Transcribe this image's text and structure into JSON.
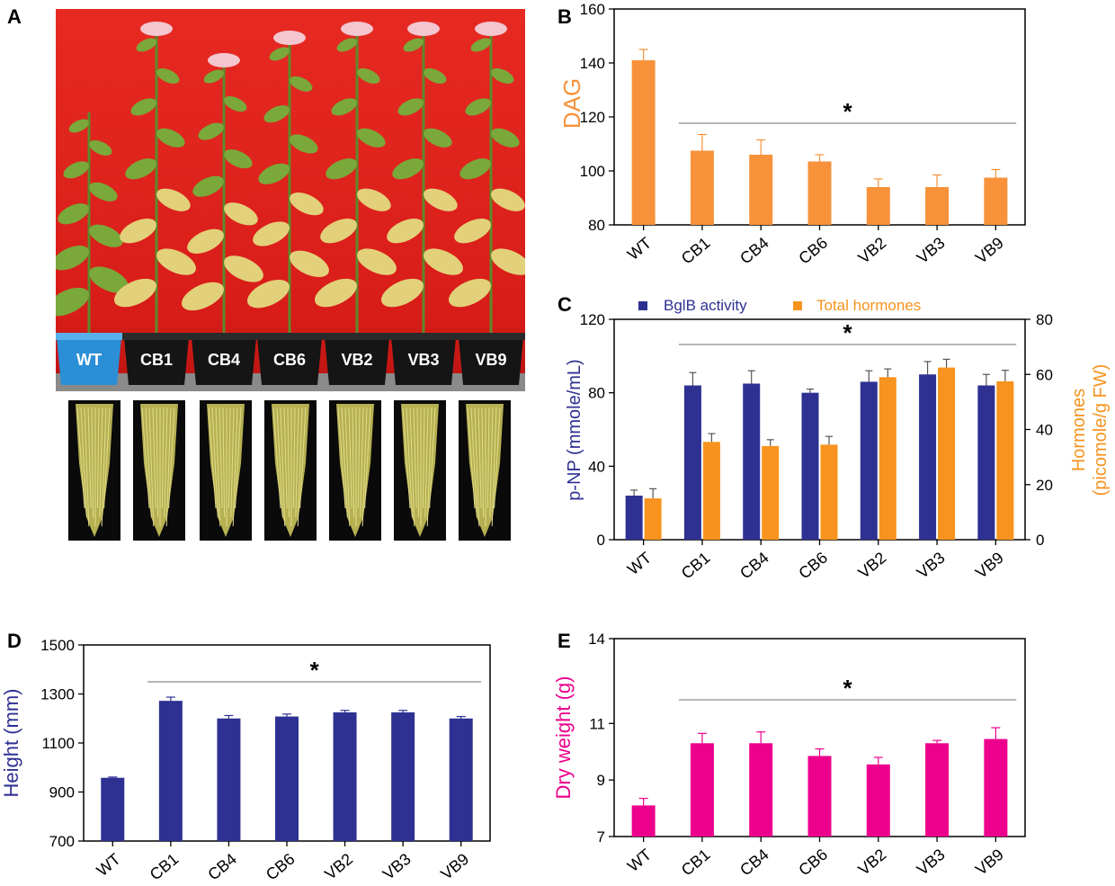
{
  "panels": {
    "A": "A",
    "B": "B",
    "C": "C",
    "D": "D",
    "E": "E"
  },
  "photo": {
    "pot_labels": [
      "WT",
      "CB1",
      "CB4",
      "CB6",
      "VB2",
      "VB3",
      "VB9"
    ],
    "background_color": "#e8231f",
    "leaf_color": "#7aa83a",
    "root_color": "#c9c25a"
  },
  "colors": {
    "orange": "#f7923a",
    "orange_dark": "#f28a1e",
    "navy": "#2e3192",
    "magenta": "#ec008c",
    "grey_line": "#8c8c8c"
  },
  "significance_marker": "*",
  "chart_data": [
    {
      "id": "B",
      "type": "bar",
      "categories": [
        "WT",
        "CB1",
        "CB4",
        "CB6",
        "VB2",
        "VB3",
        "VB9"
      ],
      "values": [
        141,
        107.5,
        106,
        103.5,
        94,
        94,
        97.5
      ],
      "errors": [
        4,
        6,
        5.5,
        2.5,
        3,
        4.5,
        3
      ],
      "ylabel": "DAG",
      "ylim": [
        80,
        160
      ],
      "yticks": [
        80,
        100,
        120,
        140,
        160
      ],
      "color": "#f7923a",
      "significance": "*"
    },
    {
      "id": "C",
      "type": "bar",
      "categories": [
        "WT",
        "CB1",
        "CB4",
        "CB6",
        "VB2",
        "VB3",
        "VB9"
      ],
      "series": [
        {
          "name": "BglB activity",
          "axis": "left",
          "color": "#2e3192",
          "values": [
            24,
            84,
            85,
            80,
            86,
            90,
            84
          ],
          "errors": [
            3,
            7,
            7,
            2,
            6,
            7,
            6
          ]
        },
        {
          "name": "Total hormones",
          "axis": "right",
          "color": "#f7931e",
          "values": [
            15,
            35.5,
            34,
            34.5,
            59,
            62.5,
            57.5
          ],
          "errors": [
            3.5,
            3,
            2.3,
            3,
            3,
            3,
            4
          ]
        }
      ],
      "ylabel_left": "p-NP (mmole/mL)",
      "ylabel_right_line1": "Hormones",
      "ylabel_right_line2": "(picomole/g FW)",
      "ylim_left": [
        0,
        120
      ],
      "yticks_left": [
        0,
        40,
        80,
        120
      ],
      "ylim_right": [
        0,
        80
      ],
      "yticks_right": [
        0,
        20,
        40,
        60,
        80
      ],
      "significance": "*"
    },
    {
      "id": "D",
      "type": "bar",
      "categories": [
        "WT",
        "CB1",
        "CB4",
        "CB6",
        "VB2",
        "VB3",
        "VB9"
      ],
      "values": [
        958,
        1272,
        1200,
        1208,
        1225,
        1225,
        1200
      ],
      "errors": [
        3,
        15,
        12,
        10,
        8,
        8,
        8
      ],
      "ylabel": "Height (mm)",
      "ylim": [
        700,
        1500
      ],
      "yticks": [
        700,
        900,
        1100,
        1300,
        1500
      ],
      "color": "#2e3192",
      "significance": "*"
    },
    {
      "id": "E",
      "type": "bar",
      "categories": [
        "WT",
        "CB1",
        "CB4",
        "CB6",
        "VB2",
        "VB3",
        "VB9"
      ],
      "values": [
        8.1,
        10.3,
        10.3,
        9.85,
        9.55,
        10.3,
        10.45
      ],
      "errors": [
        0.25,
        0.35,
        0.4,
        0.25,
        0.25,
        0.1,
        0.4
      ],
      "ylabel": "Dry weight (g)",
      "ylim": [
        7,
        14
      ],
      "yticks": [
        7,
        9,
        11,
        14
      ],
      "color": "#ec008c",
      "significance": "*"
    }
  ]
}
